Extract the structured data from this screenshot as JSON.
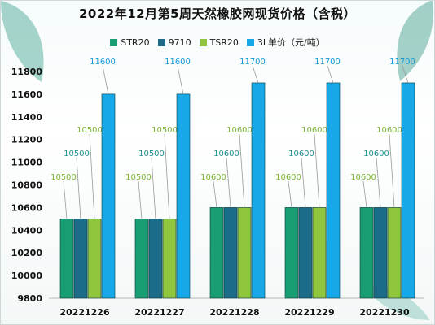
{
  "title": "2022年12月第5周天然橡胶网现货价格（含税）",
  "legend_label": "3L单价（元/吨）",
  "colors": {
    "STR20": "#199d73",
    "9710": "#1c6c89",
    "TSR20": "#8fc63d",
    "3L": "#16a8e8",
    "label_green": "#7cb433",
    "label_teal": "#1f8f8f",
    "label_blue": "#1599d6"
  },
  "chart_data": {
    "type": "bar",
    "title": "2022年12月第5周天然橡胶网现货价格（含税）",
    "categories": [
      "20221226",
      "20221227",
      "20221228",
      "20221229",
      "20221230"
    ],
    "ylim": [
      9800,
      11800
    ],
    "yticks": [
      9800,
      10000,
      10200,
      10400,
      10600,
      10800,
      11000,
      11200,
      11400,
      11600,
      11800
    ],
    "grid": false,
    "legend_position": "top",
    "series": [
      {
        "name": "STR20",
        "values": [
          10500,
          10500,
          10600,
          10600,
          10600
        ]
      },
      {
        "name": "9710",
        "values": [
          10500,
          10500,
          10600,
          10600,
          10600
        ]
      },
      {
        "name": "TSR20",
        "values": [
          10500,
          10500,
          10600,
          10600,
          10600
        ]
      },
      {
        "name": "3L单价（元/吨）",
        "values": [
          11600,
          11600,
          11700,
          11700,
          11700
        ]
      }
    ]
  }
}
